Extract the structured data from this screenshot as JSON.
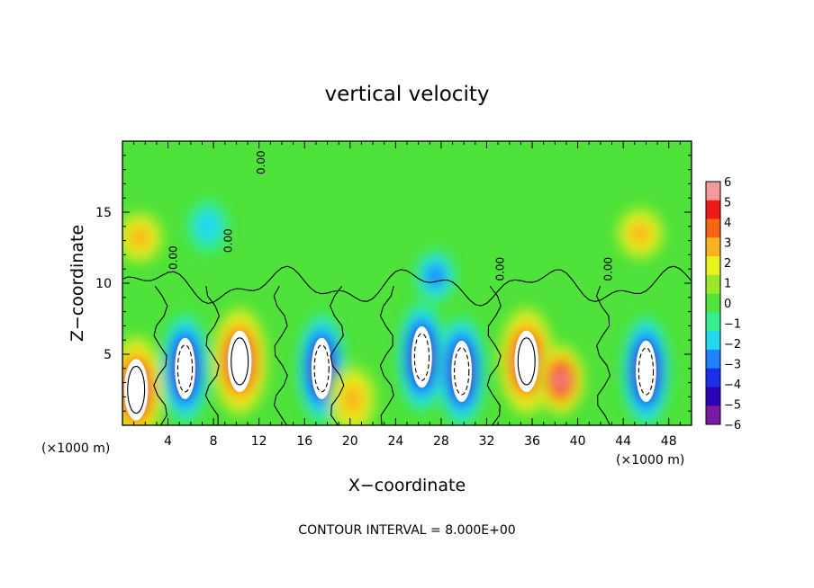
{
  "chart_data": {
    "type": "heatmap",
    "title": "vertical velocity",
    "xlabel": "X−coordinate",
    "ylabel": "Z−coordinate",
    "x_unit_left": "(×1000 m)",
    "x_unit_right": "(×1000 m)",
    "footnote": "CONTOUR INTERVAL = 8.000E+00",
    "x_ticks": [
      4,
      8,
      12,
      16,
      20,
      24,
      28,
      32,
      36,
      40,
      44,
      48
    ],
    "y_ticks": [
      5,
      10,
      15
    ],
    "xlim": [
      0,
      50
    ],
    "ylim": [
      0,
      20
    ],
    "colorbar": {
      "ticks": [
        "6",
        "5",
        "4",
        "3",
        "2",
        "1",
        "0",
        "−1",
        "−2",
        "−3",
        "−4",
        "−5",
        "−6"
      ],
      "range": [
        -6,
        6
      ]
    },
    "contour_labels": [
      "0.00",
      "0.00",
      "0.00",
      "0.00",
      "0.00"
    ],
    "features": [
      {
        "x": 1.2,
        "z": 2.5,
        "w": 8
      },
      {
        "x": 5.5,
        "z": 4.0,
        "w": -8
      },
      {
        "x": 10.3,
        "z": 4.5,
        "w": 9
      },
      {
        "x": 17.5,
        "z": 4.0,
        "w": -8
      },
      {
        "x": 20.2,
        "z": 1.8,
        "w": 3
      },
      {
        "x": 26.3,
        "z": 4.8,
        "w": -7
      },
      {
        "x": 29.8,
        "z": 3.8,
        "w": -8
      },
      {
        "x": 35.5,
        "z": 4.5,
        "w": 9
      },
      {
        "x": 38.5,
        "z": 3.2,
        "w": 6
      },
      {
        "x": 46.0,
        "z": 3.8,
        "w": -8
      },
      {
        "x": 1.5,
        "z": 13.2,
        "w": 3
      },
      {
        "x": 45.5,
        "z": 13.5,
        "w": 3
      },
      {
        "x": 7.5,
        "z": 14.0,
        "w": -2
      },
      {
        "x": 27.5,
        "z": 10.5,
        "w": -3
      }
    ]
  },
  "colors": {
    "scale": [
      "#7a1aa0",
      "#2a00b8",
      "#1e2ee8",
      "#1e82ff",
      "#22d8ee",
      "#35ee8e",
      "#4ee23a",
      "#9ae82a",
      "#eaf21e",
      "#fab21e",
      "#f76414",
      "#ee1a1a",
      "#f59a9a"
    ]
  }
}
